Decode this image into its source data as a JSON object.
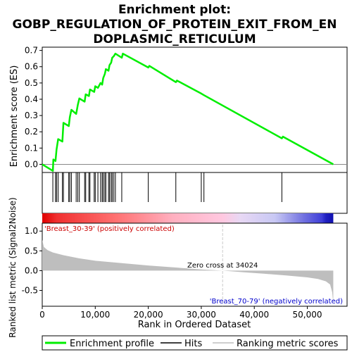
{
  "chart_data": {
    "type": "line",
    "title_lines": [
      "Enrichment plot:",
      "GOBP_REGULATION_OF_PROTEIN_EXIT_FROM_EN",
      "DOPLASMIC_RETICULUM"
    ],
    "top_panel": {
      "ylabel": "Enrichment score (ES)",
      "ylim": [
        -0.05,
        0.72
      ],
      "yticks": [
        0.0,
        0.1,
        0.2,
        0.3,
        0.4,
        0.5,
        0.6,
        0.7
      ],
      "ytick_labels": [
        "0.0",
        "0.1",
        "0.2",
        "0.3",
        "0.4",
        "0.5",
        "0.6",
        "0.7"
      ],
      "es_curve": {
        "x": [
          0,
          2000,
          2100,
          2500,
          2700,
          3000,
          3800,
          4000,
          5000,
          5200,
          5500,
          6400,
          6700,
          7000,
          8000,
          8200,
          8800,
          9000,
          9800,
          10000,
          10500,
          11000,
          11300,
          11500,
          11800,
          12000,
          12500,
          12700,
          13000,
          13200,
          13500,
          13800,
          15000,
          15200,
          20000,
          20200,
          25200,
          25400,
          30000,
          30500,
          45200,
          45400,
          54900
        ],
        "y": [
          0.0,
          -0.04,
          0.03,
          0.02,
          0.09,
          0.155,
          0.14,
          0.255,
          0.235,
          0.29,
          0.335,
          0.31,
          0.365,
          0.405,
          0.385,
          0.43,
          0.42,
          0.46,
          0.445,
          0.48,
          0.47,
          0.5,
          0.49,
          0.53,
          0.555,
          0.585,
          0.575,
          0.61,
          0.625,
          0.655,
          0.665,
          0.68,
          0.655,
          0.68,
          0.595,
          0.605,
          0.505,
          0.515,
          0.435,
          0.425,
          0.16,
          0.17,
          0.0
        ]
      }
    },
    "hits": [
      2000,
      2500,
      2700,
      3000,
      3800,
      4000,
      5000,
      5200,
      5500,
      6400,
      6700,
      7000,
      8000,
      8200,
      8800,
      9000,
      9800,
      10000,
      10500,
      11000,
      11300,
      11500,
      11800,
      12000,
      12500,
      12700,
      13000,
      13200,
      13500,
      13800,
      15000,
      20000,
      25200,
      30000,
      30500,
      45200
    ],
    "gradient_bar": {
      "left_label": "'Breast_30-39' (positively correlated)",
      "right_label": "'Breast_70-79' (negatively correlated)"
    },
    "bottom_panel": {
      "ylabel": "Ranked list metric (Signal2Noise)",
      "ylim": [
        -0.9,
        1.2
      ],
      "yticks": [
        1.0,
        0.5,
        0.0,
        -0.5
      ],
      "ytick_labels": [
        "1.0",
        "0.5",
        "0.0",
        "-0.5"
      ],
      "metric_curve": {
        "x": [
          0,
          300,
          1000,
          2000,
          4000,
          7000,
          10000,
          15000,
          20000,
          25000,
          30000,
          34024,
          38000,
          42000,
          46000,
          50000,
          52000,
          53500,
          54300,
          54700,
          54900
        ],
        "y": [
          0.78,
          0.6,
          0.52,
          0.46,
          0.39,
          0.31,
          0.25,
          0.19,
          0.13,
          0.08,
          0.03,
          0.0,
          -0.04,
          -0.08,
          -0.12,
          -0.17,
          -0.21,
          -0.27,
          -0.35,
          -0.55,
          -0.82
        ]
      },
      "zero_cross_label": "Zero cross at 34024",
      "zero_cross_x": 34024
    },
    "xaxis": {
      "xlabel": "Rank in Ordered Dataset",
      "xlim": [
        0,
        57500
      ],
      "xticks": [
        0,
        10000,
        20000,
        30000,
        40000,
        50000
      ],
      "xtick_labels": [
        "0",
        "10,000",
        "20,000",
        "30,000",
        "40,000",
        "50,000"
      ]
    },
    "legend": {
      "items": [
        "Enrichment profile",
        "Hits",
        "Ranking metric scores"
      ]
    },
    "colors": {
      "es_line": "#00ee00",
      "hits": "#000000",
      "metric_fill": "#bebebe",
      "pos_label": "#cc0000",
      "neg_label": "#0000cc"
    }
  }
}
